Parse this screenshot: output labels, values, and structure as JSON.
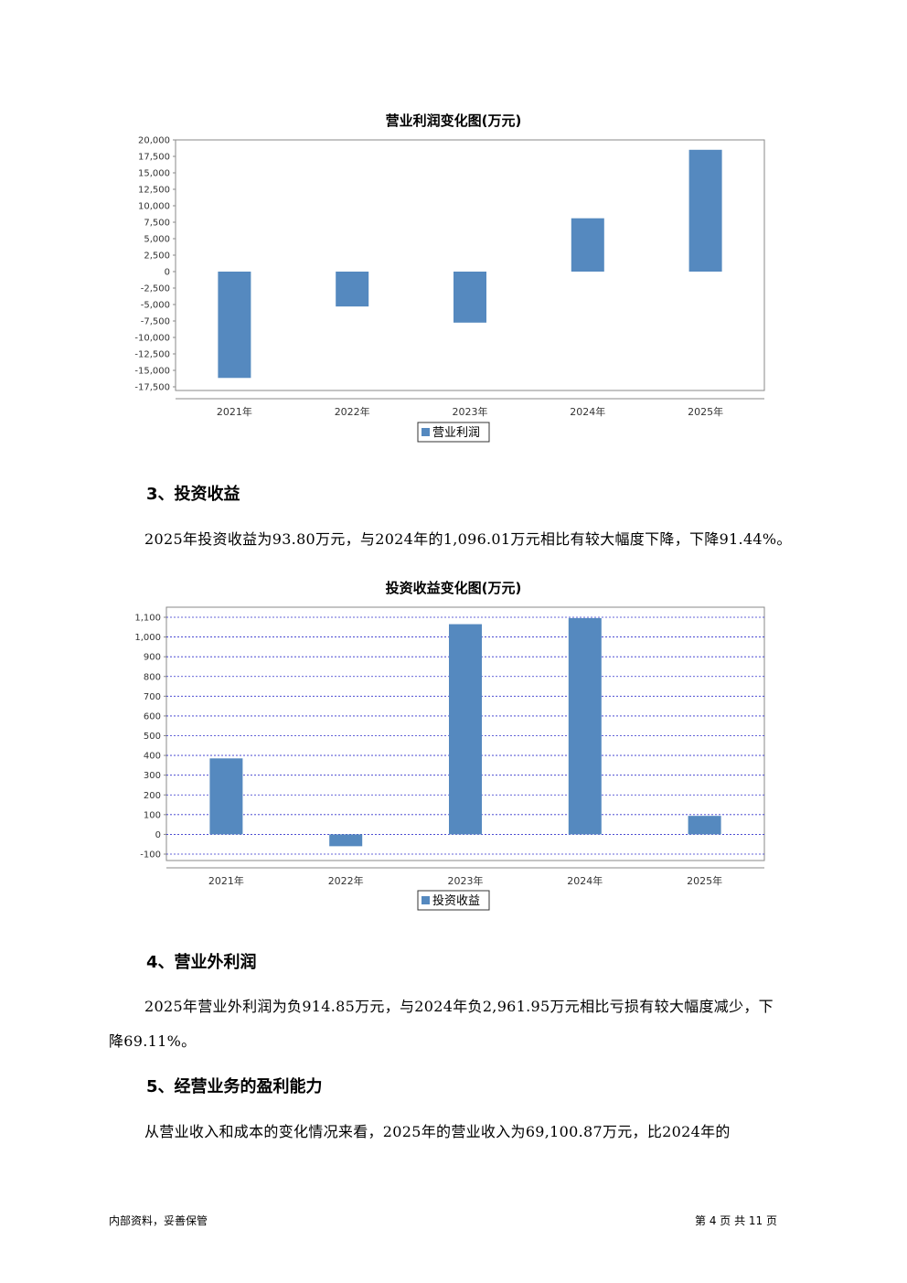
{
  "chart_data": [
    {
      "type": "bar",
      "title": "营业利润变化图(万元)",
      "categories": [
        "2021年",
        "2022年",
        "2023年",
        "2024年",
        "2025年"
      ],
      "series": [
        {
          "name": "营业利润",
          "values": [
            -16150,
            -5300,
            -7750,
            8100,
            18500
          ]
        }
      ],
      "ylim": [
        -17500,
        20000
      ],
      "yticks": [
        "20,000",
        "17,500",
        "15,000",
        "12,500",
        "10,000",
        "7,500",
        "5,000",
        "2,500",
        "0",
        "-2,500",
        "-5,000",
        "-7,500",
        "-10,000",
        "-12,500",
        "-15,000",
        "-17,500"
      ],
      "ytick_values": [
        20000,
        17500,
        15000,
        12500,
        10000,
        7500,
        5000,
        2500,
        0,
        -2500,
        -5000,
        -7500,
        -10000,
        -12500,
        -15000,
        -17500
      ],
      "grid": false,
      "legend": "bottom-center",
      "color": "#5589bf"
    },
    {
      "type": "bar",
      "title": "投资收益变化图(万元)",
      "categories": [
        "2021年",
        "2022年",
        "2023年",
        "2024年",
        "2025年"
      ],
      "series": [
        {
          "name": "投资收益",
          "values": [
            385,
            -60,
            1065,
            1096.01,
            93.8
          ]
        }
      ],
      "ylim": [
        -100,
        1100
      ],
      "yticks": [
        "1,100",
        "1,000",
        "900",
        "800",
        "700",
        "600",
        "500",
        "400",
        "300",
        "200",
        "100",
        "0",
        "-100"
      ],
      "ytick_values": [
        1100,
        1000,
        900,
        800,
        700,
        600,
        500,
        400,
        300,
        200,
        100,
        0,
        -100
      ],
      "grid": true,
      "legend": "bottom-center",
      "color": "#5589bf"
    }
  ],
  "headings": {
    "investment": "3、投资收益",
    "nonop": "4、营业外利润",
    "profitability": "5、经营业务的盈利能力"
  },
  "paragraphs": {
    "investment": "2025年投资收益为93.80万元，与2024年的1,096.01万元相比有较大幅度下降，下降91.44%。",
    "nonop_line1": "2025年营业外利润为负914.85万元，与2024年负2,961.95万元相比亏损有较大幅度减少，下",
    "nonop_line2": "降69.11%。",
    "profitability": "从营业收入和成本的变化情况来看，2025年的营业收入为69,100.87万元，比2024年的"
  },
  "footer": {
    "left": "内部资料，妥善保管",
    "right": "第 4 页  共 11 页"
  }
}
